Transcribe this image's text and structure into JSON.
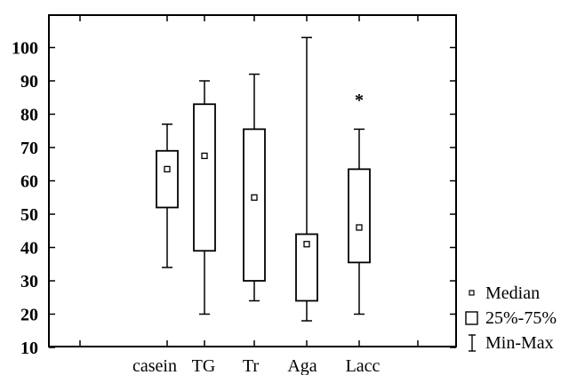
{
  "chart_data": {
    "type": "boxplot",
    "categories": [
      "casein",
      "TG",
      "Tr",
      "Aga",
      "Lacc"
    ],
    "ylim": [
      10,
      105
    ],
    "yticks": [
      10,
      20,
      30,
      40,
      50,
      60,
      70,
      80,
      90,
      100
    ],
    "ytick_labels": [
      "10",
      "20",
      "30",
      "40",
      "50",
      "60",
      "70",
      "80",
      "90",
      "100"
    ],
    "grid": false,
    "legend_position": "bottom-right, outside plot",
    "boxes": [
      {
        "category": "casein",
        "min": 34,
        "q1": 52,
        "median": 63.5,
        "q3": 69,
        "max": 77,
        "outliers": []
      },
      {
        "category": "TG",
        "min": 20,
        "q1": 39,
        "median": 67.5,
        "q3": 83,
        "max": 90,
        "outliers": []
      },
      {
        "category": "Tr",
        "min": 24,
        "q1": 30,
        "median": 55,
        "q3": 75.5,
        "max": 92,
        "outliers": []
      },
      {
        "category": "Aga",
        "min": 18,
        "q1": 24,
        "median": 41,
        "q3": 44,
        "max": 103,
        "outliers": []
      },
      {
        "category": "Lacc",
        "min": 20,
        "q1": 35.5,
        "median": 46,
        "q3": 63.5,
        "max": 75.5,
        "outliers": [
          85
        ]
      }
    ],
    "legend": [
      {
        "symbol": "median-marker",
        "label": "Median"
      },
      {
        "symbol": "box",
        "label": "25%-75%"
      },
      {
        "symbol": "whisker",
        "label": "Min-Max"
      }
    ],
    "colors": {
      "stroke": "#000000",
      "background": "#ffffff"
    }
  }
}
